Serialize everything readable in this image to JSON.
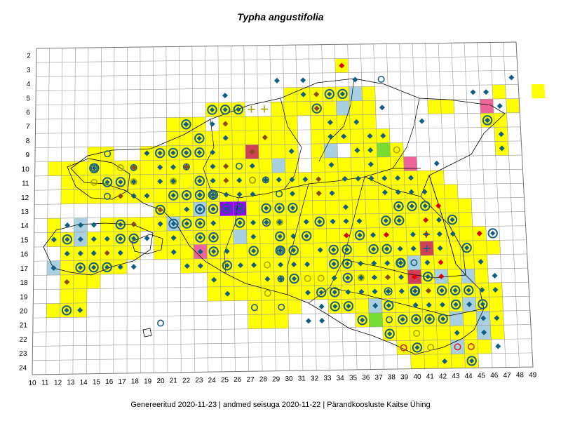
{
  "title": "Typha angustifolia",
  "footer": "Genereeritud 2020-11-23  |  andmed seisuga 2020-11-22  |  Pärandkoosluste Kaitse Ühing",
  "colors": {
    "grid": "#9a9a9a",
    "frame": "#777777",
    "cell_yellow": "#ffff00",
    "cell_lightblue": "#a8d0e0",
    "cell_green": "#77dd33",
    "cell_red": "#d04055",
    "cell_pink": "#ee6699",
    "cell_purple": "#9900ff",
    "diamond_blue": "#115e85",
    "diamond_brown": "#8a4a1a",
    "diamond_red": "#dd0000",
    "ring": "#1a5f84",
    "ring_yellow": "#a6a600",
    "ring_red": "#dd2222",
    "outline": "#000000"
  },
  "axes": {
    "row_labels": [
      "2",
      "3",
      "4",
      "5",
      "6",
      "7",
      "8",
      "9",
      "10",
      "11",
      "12",
      "13",
      "14",
      "15",
      "16",
      "17",
      "18",
      "19",
      "20",
      "21",
      "22",
      "23",
      "24"
    ],
    "col_labels": [
      "10",
      "11",
      "12",
      "13",
      "14",
      "15",
      "16",
      "17",
      "18",
      "19",
      "20",
      "21",
      "22",
      "23",
      "24",
      "25",
      "26",
      "27",
      "28",
      "29",
      "30",
      "31",
      "32",
      "33",
      "34",
      "35",
      "36",
      "37",
      "38",
      "39",
      "40",
      "41",
      "42",
      "43",
      "44",
      "45",
      "46",
      "47",
      "48",
      "49"
    ]
  },
  "legend_icons": [
    "diamond-icon",
    "ring-icon",
    "ring-diamond-icon",
    "plus-icon",
    "ring-plus-icon"
  ]
}
